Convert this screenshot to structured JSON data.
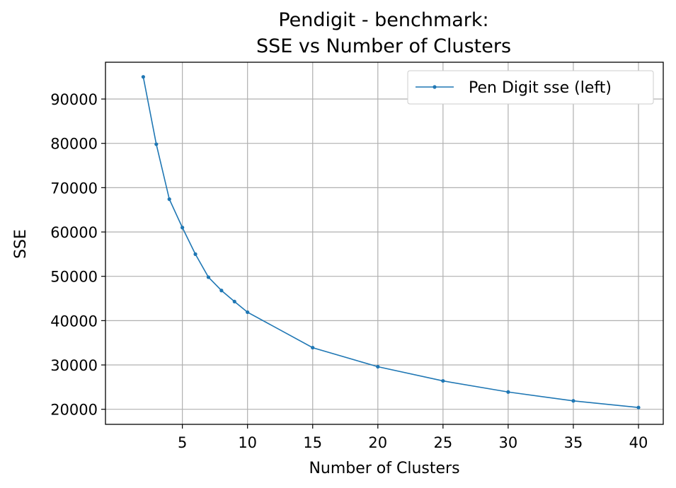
{
  "chart_data": {
    "type": "line",
    "title_lines": [
      "Pendigit - benchmark:",
      "SSE vs Number of Clusters"
    ],
    "xlabel": "Number of Clusters",
    "ylabel": "SSE",
    "xlim": [
      -0.9,
      41.9
    ],
    "ylim": [
      16600,
      98300
    ],
    "x_ticks": [
      5,
      10,
      15,
      20,
      25,
      30,
      35,
      40
    ],
    "y_ticks": [
      20000,
      30000,
      40000,
      50000,
      60000,
      70000,
      80000,
      90000
    ],
    "grid": true,
    "legend_position": "top-right",
    "colors": {
      "series": "#1f77b4",
      "grid": "#b0b0b0",
      "axis": "#000000"
    },
    "series": [
      {
        "name": "Pen Digit sse (left)",
        "x": [
          2,
          3,
          4,
          5,
          6,
          7,
          8,
          9,
          10,
          15,
          20,
          25,
          30,
          35,
          40
        ],
        "y": [
          95000,
          79800,
          67400,
          61000,
          55000,
          49800,
          46800,
          44300,
          41900,
          33900,
          29600,
          26400,
          23900,
          21900,
          20400
        ]
      }
    ]
  }
}
